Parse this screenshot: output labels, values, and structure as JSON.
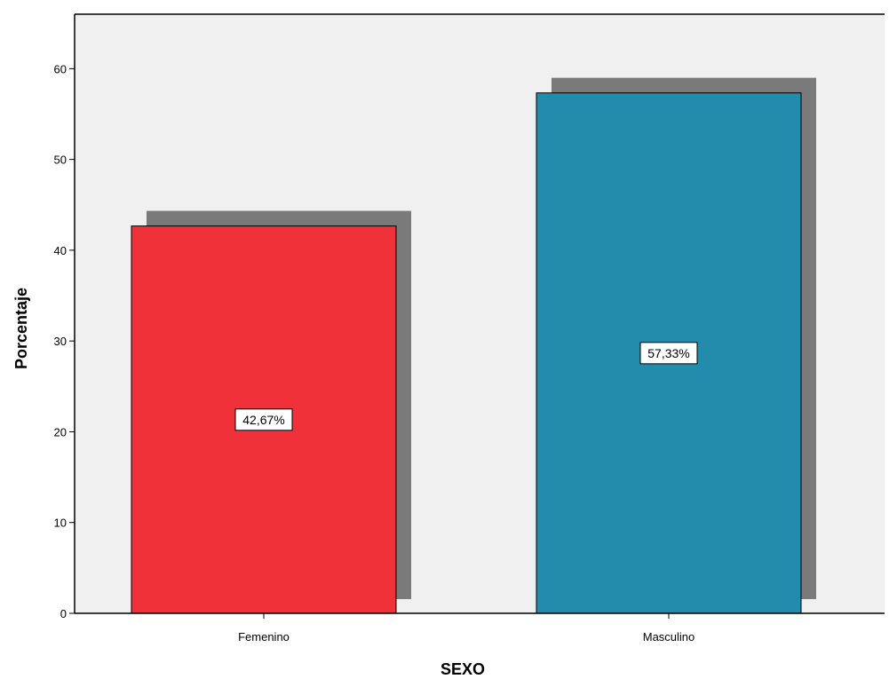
{
  "chart_data": {
    "type": "bar",
    "title": "",
    "xlabel": "SEXO",
    "ylabel": "Porcentaje",
    "categories": [
      "Femenino",
      "Masculino"
    ],
    "values": [
      42.67,
      57.33
    ],
    "data_labels": [
      "42,67%",
      "57,33%"
    ],
    "bar_colors": [
      "#f0313a",
      "#238bab"
    ],
    "shadow_color": "#7a7a7a",
    "plot_background": "#f0f0f0",
    "ylim": [
      0,
      66
    ],
    "yticks": [
      0,
      10,
      20,
      30,
      40,
      50,
      60
    ],
    "grid": false,
    "legend": "none"
  }
}
